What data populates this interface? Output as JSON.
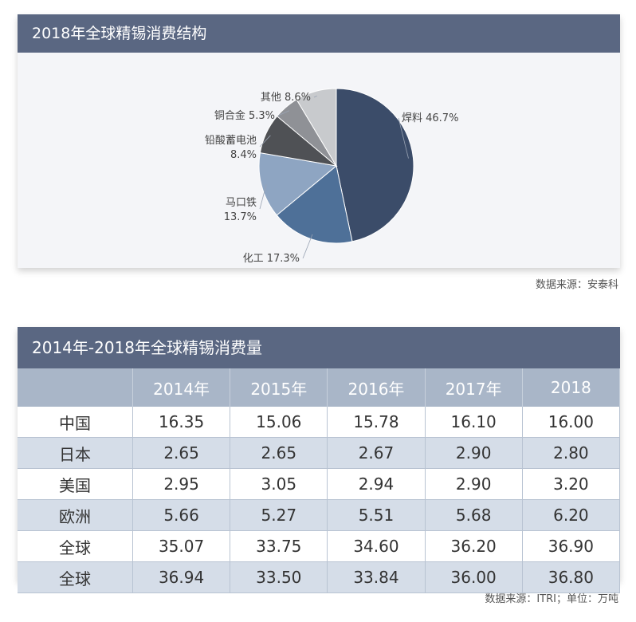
{
  "pie_panel": {
    "title": "2018年全球精锡消费结构",
    "source": "数据来源：安泰科"
  },
  "table_panel": {
    "title": "2014年-2018年全球精锡消费量",
    "source": "数据来源：ITRI；单位：万吨"
  },
  "chart_data": [
    {
      "type": "pie",
      "title": "2018年全球精锡消费结构",
      "slices": [
        {
          "label": "焊料",
          "value": 46.7,
          "value_text": "46.7%",
          "color": "#3b4c69"
        },
        {
          "label": "化工",
          "value": 17.3,
          "value_text": "17.3%",
          "color": "#4e7098"
        },
        {
          "label": "马口铁",
          "value": 13.7,
          "value_text": "13.7%",
          "color": "#8ea5c2"
        },
        {
          "label": "铅酸蓄电池",
          "value": 8.4,
          "value_text": "8.4%",
          "color": "#4f5155"
        },
        {
          "label": "铜合金",
          "value": 5.3,
          "value_text": "5.3%",
          "color": "#8f9196"
        },
        {
          "label": "其他",
          "value": 8.6,
          "value_text": "8.6%",
          "color": "#c8cacd"
        }
      ]
    },
    {
      "type": "table",
      "title": "2014年-2018年全球精锡消费量",
      "columns": [
        "",
        "2014年",
        "2015年",
        "2016年",
        "2017年",
        "2018"
      ],
      "rows": [
        [
          "中国",
          "16.35",
          "15.06",
          "15.78",
          "16.10",
          "16.00"
        ],
        [
          "日本",
          "2.65",
          "2.65",
          "2.67",
          "2.90",
          "2.80"
        ],
        [
          "美国",
          "2.95",
          "3.05",
          "2.94",
          "2.90",
          "3.20"
        ],
        [
          "欧洲",
          "5.66",
          "5.27",
          "5.51",
          "5.68",
          "6.20"
        ],
        [
          "全球",
          "35.07",
          "33.75",
          "34.60",
          "36.20",
          "36.90"
        ],
        [
          "全球",
          "36.94",
          "33.50",
          "33.84",
          "36.00",
          "36.80"
        ]
      ]
    }
  ]
}
